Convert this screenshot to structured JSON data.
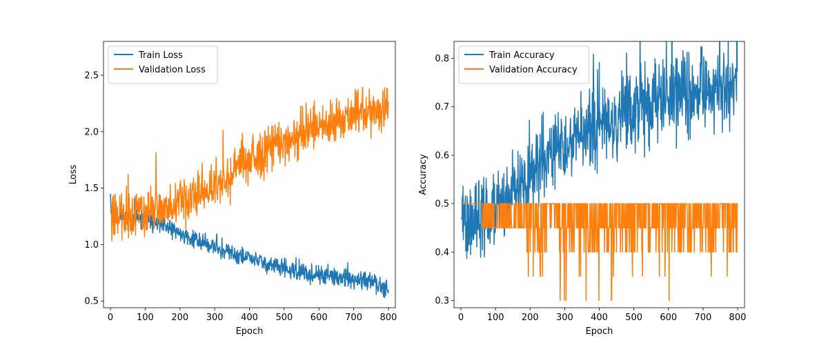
{
  "chart_data": [
    {
      "type": "line",
      "xlabel": "Epoch",
      "ylabel": "Loss",
      "xlim": [
        -20,
        820
      ],
      "ylim": [
        0.44,
        2.8
      ],
      "xticks": [
        0,
        100,
        200,
        300,
        400,
        500,
        600,
        700,
        800
      ],
      "yticks": [
        0.5,
        1.0,
        1.5,
        2.0,
        2.5
      ],
      "xtick_labels": [
        "0",
        "100",
        "200",
        "300",
        "400",
        "500",
        "600",
        "700",
        "800"
      ],
      "ytick_labels": [
        "0.5",
        "1.0",
        "1.5",
        "2.0",
        "2.5"
      ],
      "legend_position": "top-left",
      "grid": false,
      "series": [
        {
          "name": "Train Loss",
          "color": "#1f77b4",
          "x": [
            0,
            2,
            5,
            10,
            20,
            40,
            60,
            80,
            100,
            120,
            140,
            160,
            180,
            200,
            220,
            240,
            260,
            280,
            300,
            320,
            340,
            360,
            380,
            400,
            420,
            440,
            460,
            480,
            500,
            520,
            540,
            560,
            580,
            600,
            620,
            640,
            660,
            680,
            700,
            720,
            740,
            760,
            780,
            800
          ],
          "values": [
            1.45,
            1.28,
            1.26,
            1.25,
            1.25,
            1.24,
            1.23,
            1.22,
            1.21,
            1.19,
            1.17,
            1.15,
            1.13,
            1.1,
            1.07,
            1.05,
            1.02,
            1.0,
            0.98,
            0.95,
            0.93,
            0.91,
            0.89,
            0.88,
            0.86,
            0.84,
            0.82,
            0.8,
            0.78,
            0.76,
            0.75,
            0.74,
            0.73,
            0.72,
            0.72,
            0.71,
            0.7,
            0.69,
            0.68,
            0.68,
            0.67,
            0.66,
            0.65,
            0.62
          ],
          "noise": 0.04
        },
        {
          "name": "Validation Loss",
          "color": "#ff7f0e",
          "x": [
            0,
            2,
            5,
            10,
            20,
            40,
            60,
            80,
            100,
            120,
            140,
            160,
            180,
            200,
            220,
            240,
            260,
            280,
            300,
            320,
            340,
            360,
            380,
            400,
            420,
            440,
            460,
            480,
            500,
            520,
            540,
            560,
            580,
            600,
            620,
            640,
            660,
            680,
            700,
            720,
            740,
            760,
            780,
            800
          ],
          "values": [
            1.3,
            1.27,
            1.26,
            1.25,
            1.26,
            1.27,
            1.28,
            1.28,
            1.29,
            1.3,
            1.31,
            1.32,
            1.34,
            1.36,
            1.39,
            1.42,
            1.45,
            1.5,
            1.55,
            1.58,
            1.62,
            1.67,
            1.71,
            1.74,
            1.77,
            1.8,
            1.84,
            1.88,
            1.91,
            1.95,
            1.98,
            2.0,
            2.02,
            2.05,
            2.07,
            2.08,
            2.1,
            2.12,
            2.14,
            2.16,
            2.17,
            2.18,
            2.2,
            2.22
          ],
          "noise": 0.1
        }
      ]
    },
    {
      "type": "line",
      "xlabel": "Epoch",
      "ylabel": "Accuracy",
      "xlim": [
        -20,
        820
      ],
      "ylim": [
        0.285,
        0.835
      ],
      "xticks": [
        0,
        100,
        200,
        300,
        400,
        500,
        600,
        700,
        800
      ],
      "yticks": [
        0.3,
        0.4,
        0.5,
        0.6,
        0.7,
        0.8
      ],
      "xtick_labels": [
        "0",
        "100",
        "200",
        "300",
        "400",
        "500",
        "600",
        "700",
        "800"
      ],
      "ytick_labels": [
        "0.3",
        "0.4",
        "0.5",
        "0.6",
        "0.7",
        "0.8"
      ],
      "legend_position": "top-left",
      "grid": false,
      "series": [
        {
          "name": "Train Accuracy",
          "color": "#1f77b4",
          "x": [
            0,
            20,
            40,
            60,
            80,
            100,
            120,
            140,
            160,
            180,
            200,
            220,
            240,
            260,
            280,
            300,
            320,
            340,
            360,
            380,
            400,
            420,
            440,
            460,
            480,
            500,
            520,
            540,
            560,
            580,
            600,
            620,
            640,
            660,
            680,
            700,
            720,
            740,
            760,
            780,
            800
          ],
          "values": [
            0.47,
            0.46,
            0.46,
            0.47,
            0.47,
            0.48,
            0.5,
            0.51,
            0.53,
            0.54,
            0.56,
            0.58,
            0.59,
            0.6,
            0.61,
            0.62,
            0.63,
            0.64,
            0.65,
            0.66,
            0.66,
            0.67,
            0.67,
            0.68,
            0.69,
            0.69,
            0.7,
            0.7,
            0.71,
            0.71,
            0.72,
            0.72,
            0.73,
            0.73,
            0.73,
            0.74,
            0.74,
            0.74,
            0.74,
            0.75,
            0.75
          ],
          "noise": 0.04
        },
        {
          "name": "Validation Accuracy",
          "color": "#ff7f0e",
          "levels": [
            0.5,
            0.45,
            0.4,
            0.35,
            0.3
          ]
        }
      ]
    }
  ]
}
